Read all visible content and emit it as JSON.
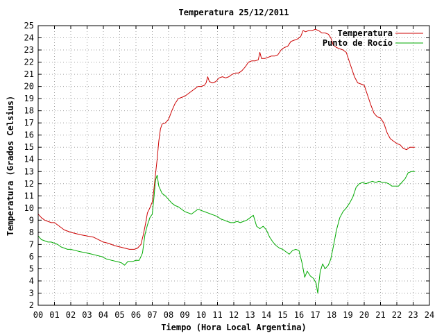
{
  "chart_data": {
    "type": "line",
    "title": "Temperatura 25/12/2011",
    "xlabel": "Tiempo (Hora Local Argentina)",
    "ylabel": "Temperatura (Grados Celsius)",
    "xlim": [
      0,
      24
    ],
    "ylim": [
      2,
      25
    ],
    "grid": true,
    "legend_position": "top-right",
    "x_tick_labels": [
      "00",
      "01",
      "02",
      "03",
      "04",
      "05",
      "06",
      "07",
      "08",
      "09",
      "10",
      "11",
      "12",
      "13",
      "14",
      "15",
      "16",
      "17",
      "18",
      "19",
      "20",
      "21",
      "22",
      "23",
      "24"
    ],
    "y_tick_labels": [
      "2",
      "3",
      "4",
      "5",
      "6",
      "7",
      "8",
      "9",
      "10",
      "11",
      "12",
      "13",
      "14",
      "15",
      "16",
      "17",
      "18",
      "19",
      "20",
      "21",
      "22",
      "23",
      "24",
      "25"
    ],
    "series": [
      {
        "name": "Temperatura",
        "color": "#cc0000",
        "points": [
          [
            0.0,
            9.5
          ],
          [
            0.2,
            9.2
          ],
          [
            0.4,
            9.0
          ],
          [
            0.6,
            8.9
          ],
          [
            0.8,
            8.8
          ],
          [
            1.0,
            8.8
          ],
          [
            1.2,
            8.6
          ],
          [
            1.4,
            8.4
          ],
          [
            1.6,
            8.2
          ],
          [
            1.8,
            8.1
          ],
          [
            2.0,
            8.0
          ],
          [
            2.3,
            7.9
          ],
          [
            2.6,
            7.8
          ],
          [
            3.0,
            7.7
          ],
          [
            3.4,
            7.6
          ],
          [
            3.7,
            7.4
          ],
          [
            4.0,
            7.2
          ],
          [
            4.3,
            7.1
          ],
          [
            4.5,
            7.0
          ],
          [
            4.7,
            6.9
          ],
          [
            5.0,
            6.8
          ],
          [
            5.3,
            6.7
          ],
          [
            5.6,
            6.6
          ],
          [
            5.9,
            6.6
          ],
          [
            6.1,
            6.7
          ],
          [
            6.3,
            7.0
          ],
          [
            6.45,
            7.8
          ],
          [
            6.6,
            8.8
          ],
          [
            6.7,
            9.6
          ],
          [
            6.85,
            10.0
          ],
          [
            7.0,
            10.5
          ],
          [
            7.1,
            11.5
          ],
          [
            7.2,
            12.8
          ],
          [
            7.3,
            14.0
          ],
          [
            7.4,
            15.5
          ],
          [
            7.5,
            16.5
          ],
          [
            7.6,
            16.9
          ],
          [
            7.8,
            17.0
          ],
          [
            8.0,
            17.3
          ],
          [
            8.2,
            18.0
          ],
          [
            8.4,
            18.6
          ],
          [
            8.6,
            19.0
          ],
          [
            8.8,
            19.1
          ],
          [
            9.0,
            19.2
          ],
          [
            9.2,
            19.4
          ],
          [
            9.4,
            19.6
          ],
          [
            9.6,
            19.8
          ],
          [
            9.8,
            20.0
          ],
          [
            10.0,
            20.0
          ],
          [
            10.2,
            20.1
          ],
          [
            10.3,
            20.3
          ],
          [
            10.4,
            20.8
          ],
          [
            10.5,
            20.4
          ],
          [
            10.7,
            20.3
          ],
          [
            10.9,
            20.4
          ],
          [
            11.1,
            20.7
          ],
          [
            11.3,
            20.8
          ],
          [
            11.5,
            20.7
          ],
          [
            11.7,
            20.8
          ],
          [
            11.9,
            21.0
          ],
          [
            12.1,
            21.1
          ],
          [
            12.3,
            21.1
          ],
          [
            12.5,
            21.3
          ],
          [
            12.7,
            21.6
          ],
          [
            12.9,
            22.0
          ],
          [
            13.1,
            22.1
          ],
          [
            13.3,
            22.1
          ],
          [
            13.5,
            22.2
          ],
          [
            13.6,
            22.8
          ],
          [
            13.7,
            22.3
          ],
          [
            13.9,
            22.3
          ],
          [
            14.1,
            22.4
          ],
          [
            14.3,
            22.5
          ],
          [
            14.5,
            22.5
          ],
          [
            14.7,
            22.6
          ],
          [
            14.9,
            23.0
          ],
          [
            15.1,
            23.2
          ],
          [
            15.3,
            23.3
          ],
          [
            15.5,
            23.7
          ],
          [
            15.7,
            23.8
          ],
          [
            15.9,
            23.9
          ],
          [
            16.1,
            24.1
          ],
          [
            16.25,
            24.6
          ],
          [
            16.4,
            24.5
          ],
          [
            16.6,
            24.6
          ],
          [
            16.8,
            24.6
          ],
          [
            17.0,
            24.7
          ],
          [
            17.2,
            24.6
          ],
          [
            17.4,
            24.4
          ],
          [
            17.6,
            24.4
          ],
          [
            17.8,
            24.3
          ],
          [
            17.95,
            24.0
          ],
          [
            18.1,
            23.4
          ],
          [
            18.3,
            23.2
          ],
          [
            18.5,
            23.1
          ],
          [
            18.7,
            23.0
          ],
          [
            18.9,
            22.8
          ],
          [
            19.0,
            22.4
          ],
          [
            19.2,
            21.6
          ],
          [
            19.4,
            20.8
          ],
          [
            19.6,
            20.3
          ],
          [
            19.8,
            20.2
          ],
          [
            20.0,
            20.1
          ],
          [
            20.2,
            19.3
          ],
          [
            20.4,
            18.5
          ],
          [
            20.6,
            17.8
          ],
          [
            20.8,
            17.5
          ],
          [
            21.0,
            17.4
          ],
          [
            21.2,
            17.0
          ],
          [
            21.4,
            16.2
          ],
          [
            21.6,
            15.7
          ],
          [
            21.8,
            15.5
          ],
          [
            22.0,
            15.3
          ],
          [
            22.2,
            15.2
          ],
          [
            22.4,
            14.9
          ],
          [
            22.6,
            14.8
          ],
          [
            22.8,
            15.0
          ],
          [
            23.0,
            15.0
          ],
          [
            23.1,
            15.0
          ]
        ]
      },
      {
        "name": "Punto de Rocío",
        "color": "#00aa00",
        "points": [
          [
            0.0,
            7.7
          ],
          [
            0.2,
            7.4
          ],
          [
            0.4,
            7.3
          ],
          [
            0.6,
            7.2
          ],
          [
            0.8,
            7.2
          ],
          [
            1.0,
            7.1
          ],
          [
            1.2,
            7.0
          ],
          [
            1.4,
            6.8
          ],
          [
            1.6,
            6.7
          ],
          [
            1.8,
            6.6
          ],
          [
            2.0,
            6.6
          ],
          [
            2.3,
            6.5
          ],
          [
            2.6,
            6.4
          ],
          [
            3.0,
            6.3
          ],
          [
            3.3,
            6.2
          ],
          [
            3.6,
            6.1
          ],
          [
            3.9,
            6.0
          ],
          [
            4.2,
            5.8
          ],
          [
            4.5,
            5.7
          ],
          [
            4.8,
            5.6
          ],
          [
            5.1,
            5.5
          ],
          [
            5.3,
            5.3
          ],
          [
            5.5,
            5.6
          ],
          [
            5.8,
            5.6
          ],
          [
            6.0,
            5.7
          ],
          [
            6.2,
            5.7
          ],
          [
            6.4,
            6.3
          ],
          [
            6.55,
            7.8
          ],
          [
            6.7,
            8.6
          ],
          [
            6.85,
            9.2
          ],
          [
            7.0,
            9.5
          ],
          [
            7.1,
            10.8
          ],
          [
            7.2,
            12.3
          ],
          [
            7.3,
            12.7
          ],
          [
            7.4,
            11.8
          ],
          [
            7.6,
            11.2
          ],
          [
            7.8,
            11.0
          ],
          [
            8.0,
            10.7
          ],
          [
            8.2,
            10.4
          ],
          [
            8.4,
            10.2
          ],
          [
            8.6,
            10.1
          ],
          [
            8.8,
            9.9
          ],
          [
            9.0,
            9.7
          ],
          [
            9.2,
            9.6
          ],
          [
            9.4,
            9.5
          ],
          [
            9.6,
            9.7
          ],
          [
            9.8,
            9.9
          ],
          [
            10.0,
            9.8
          ],
          [
            10.2,
            9.7
          ],
          [
            10.4,
            9.6
          ],
          [
            10.6,
            9.5
          ],
          [
            10.8,
            9.4
          ],
          [
            11.0,
            9.3
          ],
          [
            11.2,
            9.1
          ],
          [
            11.4,
            9.0
          ],
          [
            11.6,
            8.9
          ],
          [
            11.8,
            8.8
          ],
          [
            12.0,
            8.8
          ],
          [
            12.2,
            8.9
          ],
          [
            12.4,
            8.8
          ],
          [
            12.6,
            8.9
          ],
          [
            12.8,
            9.0
          ],
          [
            13.0,
            9.2
          ],
          [
            13.2,
            9.4
          ],
          [
            13.4,
            8.5
          ],
          [
            13.6,
            8.3
          ],
          [
            13.8,
            8.5
          ],
          [
            14.0,
            8.2
          ],
          [
            14.2,
            7.6
          ],
          [
            14.4,
            7.2
          ],
          [
            14.6,
            6.9
          ],
          [
            14.8,
            6.7
          ],
          [
            15.0,
            6.6
          ],
          [
            15.2,
            6.4
          ],
          [
            15.4,
            6.2
          ],
          [
            15.6,
            6.5
          ],
          [
            15.8,
            6.6
          ],
          [
            16.0,
            6.5
          ],
          [
            16.2,
            5.4
          ],
          [
            16.35,
            4.3
          ],
          [
            16.5,
            4.8
          ],
          [
            16.7,
            4.4
          ],
          [
            16.9,
            4.2
          ],
          [
            17.05,
            3.8
          ],
          [
            17.15,
            3.0
          ],
          [
            17.3,
            4.8
          ],
          [
            17.45,
            5.4
          ],
          [
            17.6,
            5.0
          ],
          [
            17.8,
            5.3
          ],
          [
            17.95,
            5.8
          ],
          [
            18.1,
            6.8
          ],
          [
            18.3,
            8.2
          ],
          [
            18.5,
            9.2
          ],
          [
            18.7,
            9.7
          ],
          [
            18.9,
            10.0
          ],
          [
            19.1,
            10.4
          ],
          [
            19.3,
            10.9
          ],
          [
            19.5,
            11.7
          ],
          [
            19.7,
            12.0
          ],
          [
            19.9,
            12.1
          ],
          [
            20.1,
            12.0
          ],
          [
            20.3,
            12.1
          ],
          [
            20.5,
            12.2
          ],
          [
            20.7,
            12.1
          ],
          [
            20.9,
            12.2
          ],
          [
            21.1,
            12.1
          ],
          [
            21.3,
            12.1
          ],
          [
            21.5,
            12.0
          ],
          [
            21.7,
            11.8
          ],
          [
            21.9,
            11.8
          ],
          [
            22.1,
            11.8
          ],
          [
            22.3,
            12.1
          ],
          [
            22.5,
            12.4
          ],
          [
            22.7,
            12.9
          ],
          [
            22.9,
            13.0
          ],
          [
            23.1,
            13.0
          ]
        ]
      }
    ]
  }
}
